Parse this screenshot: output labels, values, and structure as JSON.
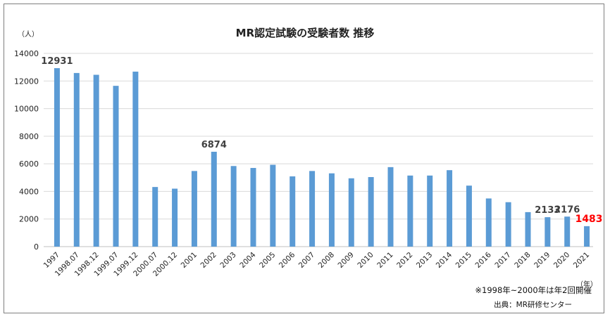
{
  "chart_data": {
    "type": "bar",
    "title": "MR認定試験の受験者数 推移",
    "y_unit_label": "（人）",
    "x_unit_label": "（年）",
    "ylim": [
      0,
      14000
    ],
    "yticks": [
      "0",
      "2000",
      "4000",
      "6000",
      "8000",
      "10000",
      "12000",
      "14000"
    ],
    "grid": "horizontal",
    "bar_color": "#5b9bd5",
    "highlight_color": "#ff0000",
    "categories": [
      "1997",
      "1998.07",
      "1998.12",
      "1999.07",
      "1999.12",
      "2000.07",
      "2000.12",
      "2001",
      "2002",
      "2003",
      "2004",
      "2005",
      "2006",
      "2007",
      "2008",
      "2009",
      "2010",
      "2011",
      "2012",
      "2013",
      "2014",
      "2015",
      "2016",
      "2017",
      "2018",
      "2019",
      "2020",
      "2021"
    ],
    "values": [
      12931,
      12580,
      12450,
      11650,
      12680,
      4320,
      4200,
      5480,
      6874,
      5840,
      5700,
      5930,
      5090,
      5480,
      5310,
      4950,
      5040,
      5760,
      5150,
      5150,
      5540,
      4420,
      3490,
      3220,
      2500,
      2133,
      2176,
      1483
    ],
    "data_labels": [
      {
        "index": 0,
        "text": "12931",
        "highlight": false
      },
      {
        "index": 8,
        "text": "6874",
        "highlight": false
      },
      {
        "index": 25,
        "text": "2133",
        "highlight": false
      },
      {
        "index": 26,
        "text": "2176",
        "highlight": false
      },
      {
        "index": 27,
        "text": "1483",
        "highlight": true
      }
    ],
    "note": "※1998年~2000年は年2回開催",
    "source": "出典：MR研修センター"
  }
}
